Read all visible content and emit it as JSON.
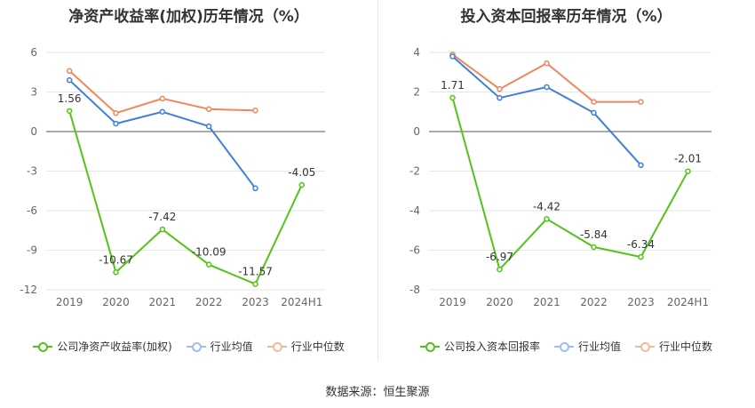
{
  "source_label": "数据来源：恒生聚源",
  "chart_data": [
    {
      "type": "line",
      "title": "净资产收益率(加权)历年情况（%）",
      "categories": [
        "2019",
        "2020",
        "2021",
        "2022",
        "2023",
        "2024H1"
      ],
      "ylim": [
        -12,
        6
      ],
      "yticks": [
        6,
        3,
        0,
        -3,
        -6,
        -9,
        -12
      ],
      "grid": true,
      "legend_position": "bottom",
      "series": [
        {
          "name": "公司净资产收益率(加权)",
          "color": "#52c41a",
          "values": [
            1.56,
            -10.67,
            -7.42,
            -10.09,
            -11.57,
            -4.05
          ],
          "labels": [
            "1.56",
            "-10.67",
            "-7.42",
            "-10.09",
            "-11.57",
            "-4.05"
          ]
        },
        {
          "name": "行业均值",
          "color": "#3f7fdc",
          "values": [
            3.9,
            0.6,
            1.5,
            0.4,
            -4.3,
            null
          ]
        },
        {
          "name": "行业中位数",
          "color": "#f0875a",
          "values": [
            4.6,
            1.4,
            2.5,
            1.7,
            1.6,
            null
          ]
        }
      ]
    },
    {
      "type": "line",
      "title": "投入资本回报率历年情况（%）",
      "categories": [
        "2019",
        "2020",
        "2021",
        "2022",
        "2023",
        "2024H1"
      ],
      "ylim": [
        -8,
        4
      ],
      "yticks": [
        4,
        2,
        0,
        -2,
        -4,
        -6,
        -8
      ],
      "grid": true,
      "legend_position": "bottom",
      "series": [
        {
          "name": "公司投入资本回报率",
          "color": "#52c41a",
          "values": [
            1.71,
            -6.97,
            -4.42,
            -5.84,
            -6.34,
            -2.01
          ],
          "labels": [
            "1.71",
            "-6.97",
            "-4.42",
            "-5.84",
            "-6.34",
            "-2.01"
          ]
        },
        {
          "name": "行业均值",
          "color": "#3f7fdc",
          "values": [
            3.8,
            1.7,
            2.25,
            0.95,
            -1.7,
            null
          ]
        },
        {
          "name": "行业中位数",
          "color": "#f0875a",
          "values": [
            3.9,
            2.15,
            3.45,
            1.5,
            1.5,
            null
          ]
        }
      ]
    }
  ]
}
